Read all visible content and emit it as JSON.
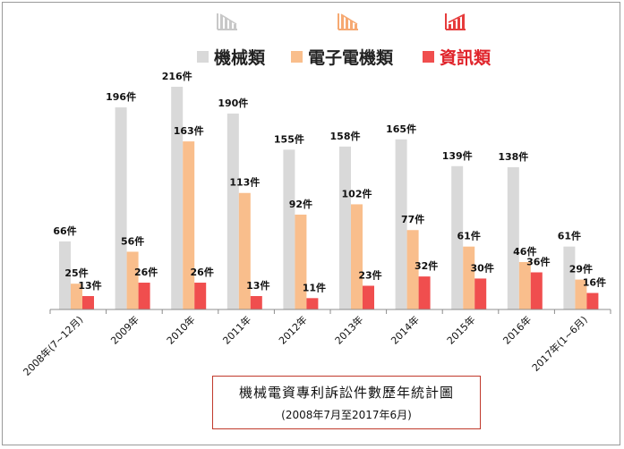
{
  "chart_data": {
    "type": "bar",
    "categories": [
      "2008年(7~12月)",
      "2009年",
      "2010年",
      "2011年",
      "2012年",
      "2013年",
      "2014年",
      "2015年",
      "2016年",
      "2017年(1~6月)"
    ],
    "series": [
      {
        "name": "機械類",
        "color": "#d9d9d9",
        "values": [
          66,
          196,
          216,
          190,
          155,
          158,
          165,
          139,
          138,
          61
        ]
      },
      {
        "name": "電子電機類",
        "color": "#f9be8c",
        "values": [
          25,
          56,
          163,
          113,
          92,
          102,
          77,
          61,
          46,
          29
        ]
      },
      {
        "name": "資訊類",
        "color": "#f04e4e",
        "values": [
          13,
          26,
          26,
          13,
          11,
          23,
          32,
          30,
          36,
          16
        ]
      }
    ],
    "value_suffix": "件",
    "ylim": [
      0,
      216
    ],
    "grid": false,
    "legend_placement": "top",
    "legend_colors": [
      "#222222",
      "#222222",
      "#e0242b"
    ]
  },
  "caption": {
    "title": "機械電資專利訴訟件數歷年統計圖",
    "subtitle": "(2008年7月至2017年6月)"
  },
  "icons": [
    "bar-chart-descending-icon",
    "bar-chart-descending-icon",
    "bar-chart-ascending-icon"
  ]
}
